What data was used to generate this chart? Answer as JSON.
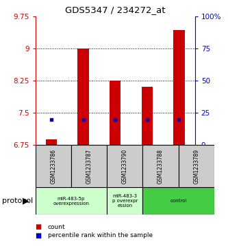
{
  "title": "GDS5347 / 234272_at",
  "samples": [
    "GSM1233786",
    "GSM1233787",
    "GSM1233790",
    "GSM1233788",
    "GSM1233789"
  ],
  "bar_values": [
    6.88,
    9.0,
    8.25,
    8.1,
    9.42
  ],
  "percentile_values": [
    7.35,
    7.35,
    7.35,
    7.35,
    7.35
  ],
  "bar_bottom": 6.75,
  "ylim": [
    6.75,
    9.75
  ],
  "yticks_left": [
    6.75,
    7.5,
    8.25,
    9.0,
    9.75
  ],
  "ytick_labels_left": [
    "6.75",
    "7.5",
    "8.25",
    "9",
    "9.75"
  ],
  "yticks_right_vals": [
    0,
    25,
    50,
    75,
    100
  ],
  "yticks_right_pos": [
    6.75,
    7.5,
    8.25,
    9.0,
    9.75
  ],
  "yticks_right_labels": [
    "0",
    "25",
    "50",
    "75",
    "100%"
  ],
  "bar_color": "#cc0000",
  "percentile_color": "#0000cc",
  "gridline_y": [
    7.5,
    8.25,
    9.0
  ],
  "group_sample_map": [
    [
      0,
      1
    ],
    [
      2
    ],
    [
      3,
      4
    ]
  ],
  "group_colors": [
    "#ccffcc",
    "#ccffcc",
    "#44cc44"
  ],
  "group_labels": [
    "miR-483-5p\noverexpression",
    "miR-483-3\np overexpr\nession",
    "control"
  ],
  "legend_count_label": "count",
  "legend_percentile_label": "percentile rank within the sample",
  "protocol_label": "protocol",
  "bg_color": "#ffffff",
  "table_bg": "#cccccc",
  "bar_width": 0.35
}
